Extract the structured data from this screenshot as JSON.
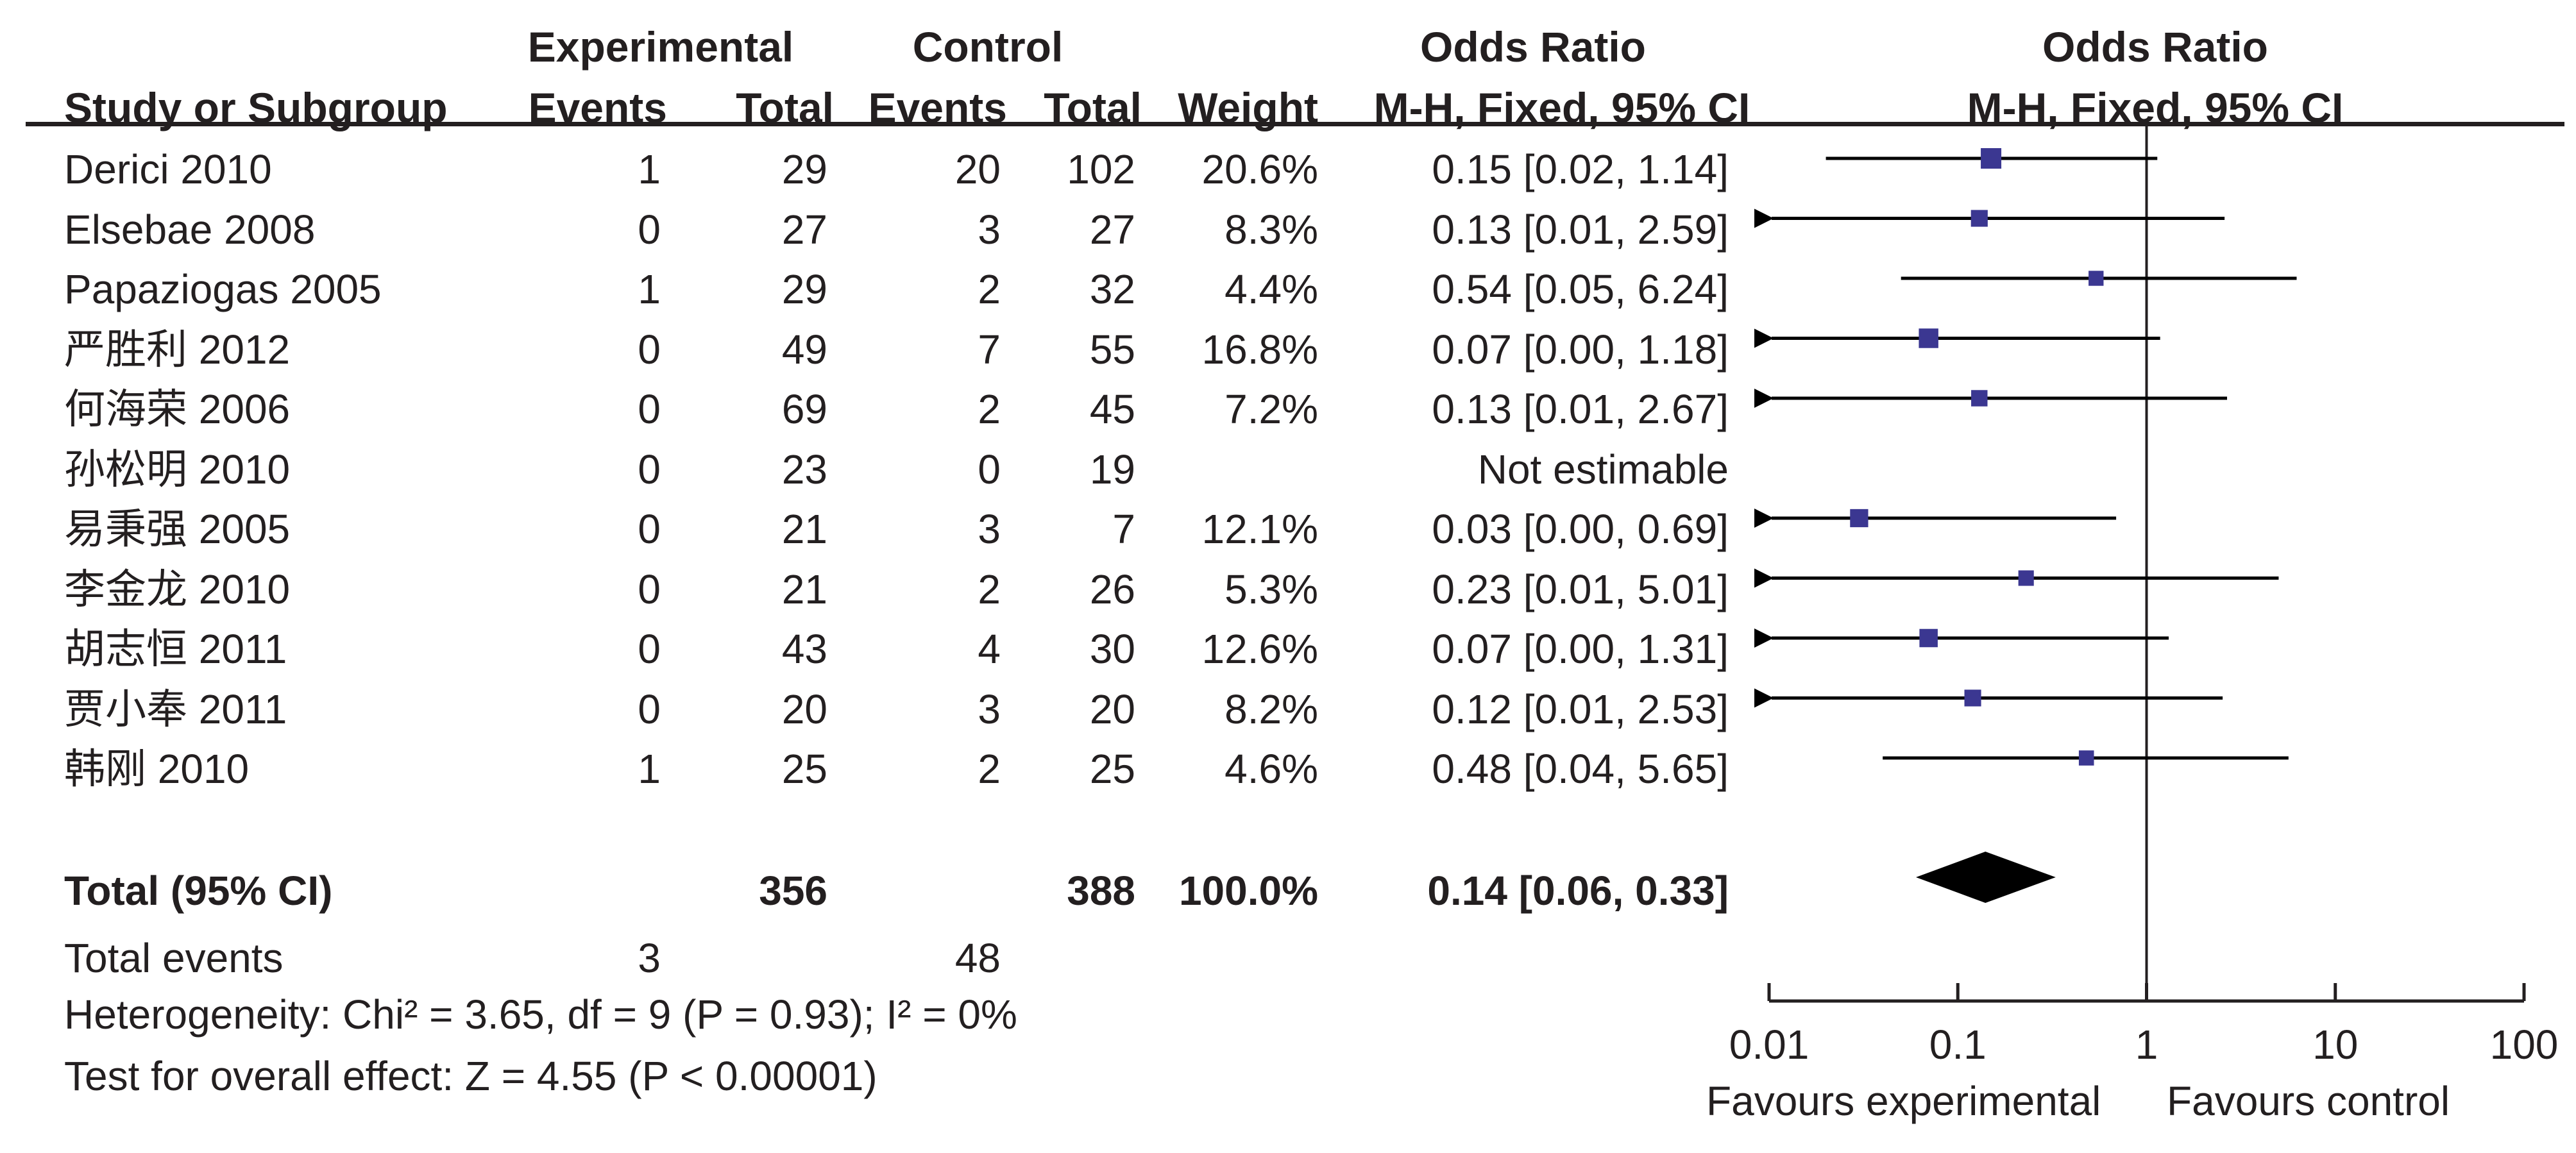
{
  "headers": {
    "study": "Study or Subgroup",
    "experimental": "Experimental",
    "control": "Control",
    "events": "Events",
    "total": "Total",
    "weight": "Weight",
    "or_title": "Odds Ratio",
    "or_method": "M-H, Fixed, 95% CI",
    "plot_title": "Odds Ratio",
    "plot_method": "M-H, Fixed, 95% CI"
  },
  "studies": [
    {
      "name": "Derici 2010",
      "exp_events": "1",
      "exp_total": "29",
      "ctl_events": "20",
      "ctl_total": "102",
      "weight": "20.6%",
      "ci_text": "0.15 [0.02, 1.14]"
    },
    {
      "name": "Elsebae 2008",
      "exp_events": "0",
      "exp_total": "27",
      "ctl_events": "3",
      "ctl_total": "27",
      "weight": "8.3%",
      "ci_text": "0.13 [0.01, 2.59]"
    },
    {
      "name": "Papaziogas 2005",
      "exp_events": "1",
      "exp_total": "29",
      "ctl_events": "2",
      "ctl_total": "32",
      "weight": "4.4%",
      "ci_text": "0.54 [0.05, 6.24]"
    },
    {
      "name": "严胜利 2012",
      "exp_events": "0",
      "exp_total": "49",
      "ctl_events": "7",
      "ctl_total": "55",
      "weight": "16.8%",
      "ci_text": "0.07 [0.00, 1.18]"
    },
    {
      "name": "何海荣 2006",
      "exp_events": "0",
      "exp_total": "69",
      "ctl_events": "2",
      "ctl_total": "45",
      "weight": "7.2%",
      "ci_text": "0.13 [0.01, 2.67]"
    },
    {
      "name": "孙松明 2010",
      "exp_events": "0",
      "exp_total": "23",
      "ctl_events": "0",
      "ctl_total": "19",
      "weight": "",
      "ci_text": "Not estimable"
    },
    {
      "name": "易秉强 2005",
      "exp_events": "0",
      "exp_total": "21",
      "ctl_events": "3",
      "ctl_total": "7",
      "weight": "12.1%",
      "ci_text": "0.03 [0.00, 0.69]"
    },
    {
      "name": "李金龙 2010",
      "exp_events": "0",
      "exp_total": "21",
      "ctl_events": "2",
      "ctl_total": "26",
      "weight": "5.3%",
      "ci_text": "0.23 [0.01, 5.01]"
    },
    {
      "name": "胡志恒 2011",
      "exp_events": "0",
      "exp_total": "43",
      "ctl_events": "4",
      "ctl_total": "30",
      "weight": "12.6%",
      "ci_text": "0.07 [0.00, 1.31]"
    },
    {
      "name": "贾小奉 2011",
      "exp_events": "0",
      "exp_total": "20",
      "ctl_events": "3",
      "ctl_total": "20",
      "weight": "8.2%",
      "ci_text": "0.12 [0.01, 2.53]"
    },
    {
      "name": "韩刚 2010",
      "exp_events": "1",
      "exp_total": "25",
      "ctl_events": "2",
      "ctl_total": "25",
      "weight": "4.6%",
      "ci_text": "0.48 [0.04, 5.65]"
    }
  ],
  "total": {
    "label": "Total (95% CI)",
    "exp_total": "356",
    "ctl_total": "388",
    "weight": "100.0%",
    "ci_text": "0.14 [0.06, 0.33]"
  },
  "total_events": {
    "label": "Total events",
    "exp": "3",
    "ctl": "48"
  },
  "heterogeneity": "Heterogeneity: Chi² = 3.65, df = 9 (P = 0.93); I² = 0%",
  "overall_effect": "Test for overall effect: Z = 4.55 (P < 0.00001)",
  "favours_left": "Favours experimental",
  "favours_right": "Favours control",
  "colors": {
    "text": "#231f20",
    "marker": "#3b3791",
    "diamond": "#000000"
  },
  "chart_data": {
    "type": "forest",
    "scale": "log",
    "xlim": [
      0.01,
      100
    ],
    "ticks": [
      "0.01",
      "0.1",
      "1",
      "10",
      "100"
    ],
    "tick_values": [
      0.01,
      0.1,
      1,
      10,
      100
    ],
    "null_line": 1,
    "rows": [
      {
        "or": 0.15,
        "lo": 0.02,
        "hi": 1.14,
        "weight": 20.6
      },
      {
        "or": 0.13,
        "lo": 0.01,
        "hi": 2.59,
        "weight": 8.3
      },
      {
        "or": 0.54,
        "lo": 0.05,
        "hi": 6.24,
        "weight": 4.4
      },
      {
        "or": 0.07,
        "lo": 0.0,
        "hi": 1.18,
        "weight": 16.8
      },
      {
        "or": 0.13,
        "lo": 0.01,
        "hi": 2.67,
        "weight": 7.2
      },
      null,
      {
        "or": 0.03,
        "lo": 0.0,
        "hi": 0.69,
        "weight": 12.1
      },
      {
        "or": 0.23,
        "lo": 0.01,
        "hi": 5.01,
        "weight": 5.3
      },
      {
        "or": 0.07,
        "lo": 0.0,
        "hi": 1.31,
        "weight": 12.6
      },
      {
        "or": 0.12,
        "lo": 0.01,
        "hi": 2.53,
        "weight": 8.2
      },
      {
        "or": 0.48,
        "lo": 0.04,
        "hi": 5.65,
        "weight": 4.6
      }
    ],
    "pooled": {
      "or": 0.14,
      "lo": 0.06,
      "hi": 0.33
    }
  }
}
